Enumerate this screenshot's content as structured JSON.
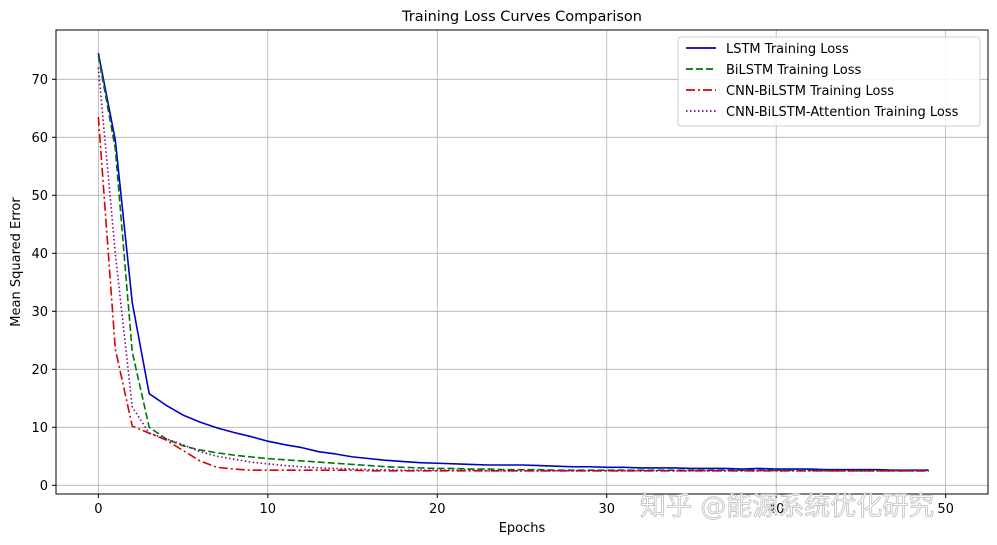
{
  "chart_data": {
    "type": "line",
    "title": "Training Loss Curves Comparison",
    "xlabel": "Epochs",
    "ylabel": "Mean Squared Error",
    "xlim": [
      -2.5,
      52.5
    ],
    "ylim": [
      -1.5,
      78.5
    ],
    "xticks": [
      0,
      10,
      20,
      30,
      40,
      50
    ],
    "yticks": [
      0,
      10,
      20,
      30,
      40,
      50,
      60,
      70
    ],
    "grid": true,
    "legend_position": "top-right",
    "x": [
      0,
      1,
      2,
      3,
      4,
      5,
      6,
      7,
      8,
      9,
      10,
      11,
      12,
      13,
      14,
      15,
      16,
      17,
      18,
      19,
      20,
      21,
      22,
      23,
      24,
      25,
      26,
      27,
      28,
      29,
      30,
      31,
      32,
      33,
      34,
      35,
      36,
      37,
      38,
      39,
      40,
      41,
      42,
      43,
      44,
      45,
      46,
      47,
      48,
      49
    ],
    "series": [
      {
        "name": "LSTM Training Loss",
        "color": "#0000cc",
        "style": "solid",
        "values": [
          74.5,
          59.5,
          31.5,
          15.8,
          13.8,
          12.1,
          10.9,
          9.9,
          9.1,
          8.4,
          7.6,
          7.0,
          6.5,
          5.8,
          5.4,
          4.9,
          4.6,
          4.3,
          4.1,
          3.9,
          3.8,
          3.7,
          3.6,
          3.5,
          3.5,
          3.5,
          3.4,
          3.3,
          3.2,
          3.2,
          3.1,
          3.1,
          3.0,
          3.0,
          3.0,
          2.9,
          2.9,
          2.9,
          2.8,
          2.9,
          2.8,
          2.8,
          2.8,
          2.7,
          2.7,
          2.7,
          2.7,
          2.6,
          2.6,
          2.6
        ]
      },
      {
        "name": "BiLSTM Training Loss",
        "color": "#007700",
        "style": "dashed",
        "values": [
          74.0,
          58.0,
          23.0,
          10.0,
          8.0,
          6.8,
          6.1,
          5.6,
          5.2,
          4.9,
          4.6,
          4.4,
          4.2,
          4.0,
          3.8,
          3.6,
          3.4,
          3.2,
          3.1,
          3.0,
          2.9,
          2.9,
          2.8,
          2.8,
          2.7,
          2.7,
          2.7,
          2.6,
          2.6,
          2.6,
          2.6,
          2.6,
          2.6,
          2.6,
          2.6,
          2.6,
          2.6,
          2.6,
          2.6,
          2.6,
          2.6,
          2.6,
          2.6,
          2.5,
          2.5,
          2.5,
          2.5,
          2.5,
          2.5,
          2.5
        ]
      },
      {
        "name": "CNN-BiLSTM Training Loss",
        "color": "#dd0000",
        "style": "dashdot",
        "values": [
          63.5,
          23.5,
          10.2,
          9.0,
          7.8,
          6.0,
          4.2,
          3.1,
          2.8,
          2.6,
          2.6,
          2.6,
          2.6,
          2.6,
          2.6,
          2.6,
          2.5,
          2.5,
          2.5,
          2.5,
          2.5,
          2.5,
          2.5,
          2.5,
          2.5,
          2.5,
          2.5,
          2.5,
          2.5,
          2.5,
          2.5,
          2.5,
          2.5,
          2.5,
          2.5,
          2.5,
          2.5,
          2.5,
          2.5,
          2.5,
          2.5,
          2.5,
          2.5,
          2.5,
          2.5,
          2.5,
          2.5,
          2.5,
          2.5,
          2.5
        ]
      },
      {
        "name": "CNN-BiLSTM-Attention Training Loss",
        "color": "#880088",
        "style": "dotted",
        "values": [
          72.0,
          40.0,
          13.5,
          9.0,
          8.0,
          7.0,
          5.8,
          5.0,
          4.5,
          4.0,
          3.7,
          3.4,
          3.2,
          3.0,
          2.9,
          2.8,
          2.7,
          2.7,
          2.6,
          2.6,
          2.6,
          2.6,
          2.6,
          2.5,
          2.5,
          2.5,
          2.5,
          2.5,
          2.5,
          2.5,
          2.5,
          2.5,
          2.5,
          2.5,
          2.5,
          2.5,
          2.5,
          2.5,
          2.5,
          2.5,
          2.5,
          2.5,
          2.5,
          2.5,
          2.5,
          2.5,
          2.5,
          2.5,
          2.5,
          2.5
        ]
      }
    ]
  },
  "watermark": "知乎 @能源系统优化研究"
}
